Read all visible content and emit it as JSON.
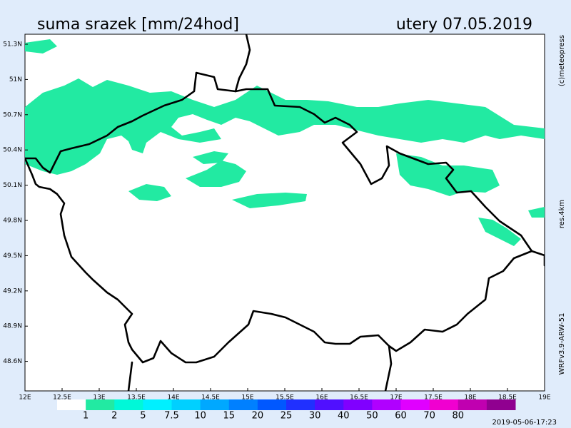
{
  "header": {
    "title": "suma srazek [mm/24hod]",
    "date": "utery 07.05.2019"
  },
  "axes": {
    "lat_labels": [
      "51.3N",
      "51N",
      "50.7N",
      "50.4N",
      "50.1N",
      "49.8N",
      "49.5N",
      "49.2N",
      "48.9N",
      "48.6N"
    ],
    "lon_labels": [
      "12E",
      "12.5E",
      "13E",
      "13.5E",
      "14E",
      "14.5E",
      "15E",
      "15.5E",
      "16E",
      "16.5E",
      "17E",
      "17.5E",
      "18E",
      "18.5E",
      "19E"
    ]
  },
  "side": {
    "copyright": "(c)meteopress",
    "resolution": "res.4km",
    "model": "WRFv3.9-ARW-51"
  },
  "legend": {
    "labels": [
      "1",
      "2",
      "5",
      "7.5",
      "10",
      "15",
      "20",
      "25",
      "30",
      "40",
      "50",
      "60",
      "70",
      "80"
    ],
    "colors": [
      "#ffffff",
      "#22eaa2",
      "#00f8d8",
      "#00f0ff",
      "#00d0ff",
      "#00a8ff",
      "#0080ff",
      "#0058ff",
      "#2030ff",
      "#5010ff",
      "#8000ff",
      "#b000ff",
      "#e000ff",
      "#f000d0",
      "#c000b0",
      "#900090"
    ]
  },
  "timestamp": "2019-05-06-17:23"
}
